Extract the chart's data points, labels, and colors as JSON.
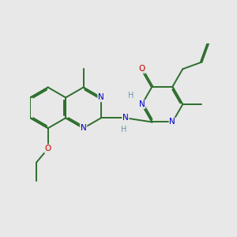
{
  "bg": "#e8e8e8",
  "bc": "#2d6e2d",
  "nc": "#0000cc",
  "oc": "#cc0000",
  "nhc": "#6699aa",
  "lw": 1.4,
  "dbo": 0.028,
  "bl": 1.0,
  "xlim": [
    -4.5,
    4.5
  ],
  "ylim": [
    -4.0,
    3.5
  ]
}
